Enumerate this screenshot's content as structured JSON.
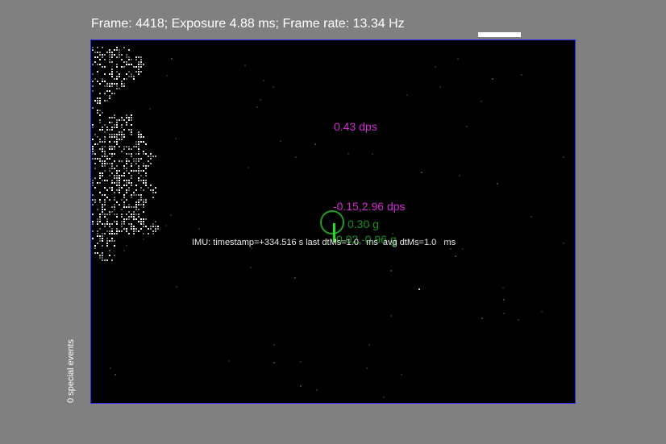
{
  "header": {
    "status_text": "Frame: 4418; Exposure 4.88 ms; Frame rate: 13.34 Hz"
  },
  "display": {
    "yaw_rate_label": "0.43 dps",
    "pitch_roll_rate_label": "-0.15,2.96 dps",
    "accel_z_label": "0.30 g",
    "accel_xy_label": "0.02,-0.96 g",
    "imu_status": "IMU: timestamp=+334.516 s last dtMs=1.0   ms  avg dtMs=1.0   ms"
  },
  "sidebar": {
    "special_events_label": "0 special events"
  },
  "colors": {
    "background": "#808080",
    "display_background": "#000000",
    "display_border": "#2a2aff",
    "rate_text": "#d22bd2",
    "accel_text": "#1f8f1f",
    "accel_vector": "#22dd22",
    "event_pixel": "#ffffff"
  }
}
